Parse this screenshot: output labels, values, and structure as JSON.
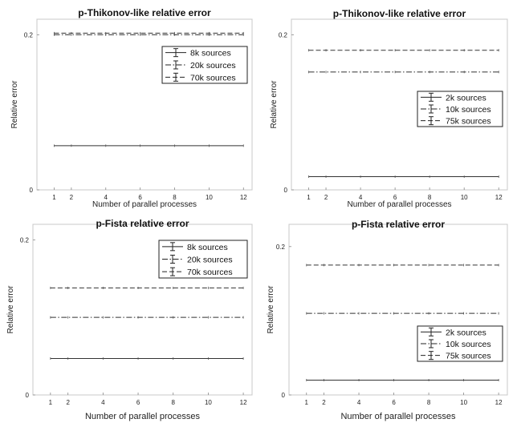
{
  "chart_data": [
    {
      "type": "line",
      "title": "p-Thikonov-like relative error",
      "xlabel": "Number of parallel processes",
      "ylabel": "Relative error",
      "x": [
        1,
        2,
        4,
        6,
        8,
        10,
        12
      ],
      "xticks": [
        "1",
        "2",
        "4",
        "6",
        "8",
        "10",
        "12"
      ],
      "xlim": [
        0,
        12.5
      ],
      "ylim": [
        0,
        0.22
      ],
      "yticks": [
        {
          "value": 0,
          "label": "0"
        },
        {
          "value": 0.2,
          "label": "0.2"
        }
      ],
      "grid": false,
      "legend": "top-right",
      "series": [
        {
          "name": "8k sources",
          "style": "solid",
          "values": [
            0.057,
            0.057,
            0.057,
            0.057,
            0.057,
            0.057,
            0.057
          ]
        },
        {
          "name": "20k sources",
          "style": "dashdot",
          "values": [
            0.2,
            0.2,
            0.2,
            0.2,
            0.2,
            0.2,
            0.2
          ]
        },
        {
          "name": "70k sources",
          "style": "dashed",
          "values": [
            0.202,
            0.202,
            0.202,
            0.202,
            0.202,
            0.202,
            0.202
          ]
        }
      ]
    },
    {
      "type": "line",
      "title": "p-Thikonov-like relative error",
      "xlabel": "Number of parallel processes",
      "ylabel": "Relative error",
      "x": [
        1,
        2,
        4,
        6,
        8,
        10,
        12
      ],
      "xticks": [
        "1",
        "2",
        "4",
        "6",
        "8",
        "10",
        "12"
      ],
      "xlim": [
        0,
        12.5
      ],
      "ylim": [
        0,
        0.22
      ],
      "yticks": [
        {
          "value": 0,
          "label": "0"
        },
        {
          "value": 0.2,
          "label": "0.2"
        }
      ],
      "grid": false,
      "legend": "right",
      "series": [
        {
          "name": "2k sources",
          "style": "solid",
          "values": [
            0.017,
            0.017,
            0.017,
            0.017,
            0.017,
            0.017,
            0.017
          ]
        },
        {
          "name": "10k sources",
          "style": "dashdot",
          "values": [
            0.152,
            0.152,
            0.152,
            0.152,
            0.152,
            0.152,
            0.152
          ]
        },
        {
          "name": "75k sources",
          "style": "dashed",
          "values": [
            0.18,
            0.18,
            0.18,
            0.18,
            0.18,
            0.18,
            0.18
          ]
        }
      ]
    },
    {
      "type": "line",
      "title": "p-Fista relative error",
      "xlabel": "Number of parallel processes",
      "ylabel": "Relative error",
      "x": [
        1,
        2,
        4,
        6,
        8,
        10,
        12
      ],
      "xticks": [
        "1",
        "2",
        "4",
        "6",
        "8",
        "10",
        "12"
      ],
      "xlim": [
        0,
        12.5
      ],
      "ylim": [
        0,
        0.22
      ],
      "yticks": [
        {
          "value": 0,
          "label": "0"
        },
        {
          "value": 0.2,
          "label": "0.2"
        }
      ],
      "grid": false,
      "legend": "top-right",
      "series": [
        {
          "name": "8k sources",
          "style": "solid",
          "values": [
            0.047,
            0.047,
            0.047,
            0.047,
            0.047,
            0.047,
            0.047
          ]
        },
        {
          "name": "20k sources",
          "style": "dashdot",
          "values": [
            0.1,
            0.1,
            0.1,
            0.1,
            0.1,
            0.1,
            0.1
          ]
        },
        {
          "name": "70k sources",
          "style": "dashed",
          "values": [
            0.138,
            0.138,
            0.138,
            0.138,
            0.138,
            0.138,
            0.138
          ]
        }
      ]
    },
    {
      "type": "line",
      "title": "p-Fista relative error",
      "xlabel": "Number of parallel processes",
      "ylabel": "Relative error",
      "x": [
        1,
        2,
        4,
        6,
        8,
        10,
        12
      ],
      "xticks": [
        "1",
        "2",
        "4",
        "6",
        "8",
        "10",
        "12"
      ],
      "xlim": [
        0,
        12.5
      ],
      "ylim": [
        0,
        0.23
      ],
      "yticks": [
        {
          "value": 0,
          "label": "0"
        },
        {
          "value": 0.2,
          "label": "0.2"
        }
      ],
      "grid": false,
      "legend": "bottom-right",
      "series": [
        {
          "name": "2k sources",
          "style": "solid",
          "values": [
            0.02,
            0.02,
            0.02,
            0.02,
            0.02,
            0.02,
            0.02
          ]
        },
        {
          "name": "10k sources",
          "style": "dashdot",
          "values": [
            0.11,
            0.11,
            0.11,
            0.11,
            0.11,
            0.11,
            0.11
          ]
        },
        {
          "name": "75k sources",
          "style": "dashed",
          "values": [
            0.175,
            0.175,
            0.175,
            0.175,
            0.175,
            0.175,
            0.175
          ]
        }
      ]
    }
  ]
}
